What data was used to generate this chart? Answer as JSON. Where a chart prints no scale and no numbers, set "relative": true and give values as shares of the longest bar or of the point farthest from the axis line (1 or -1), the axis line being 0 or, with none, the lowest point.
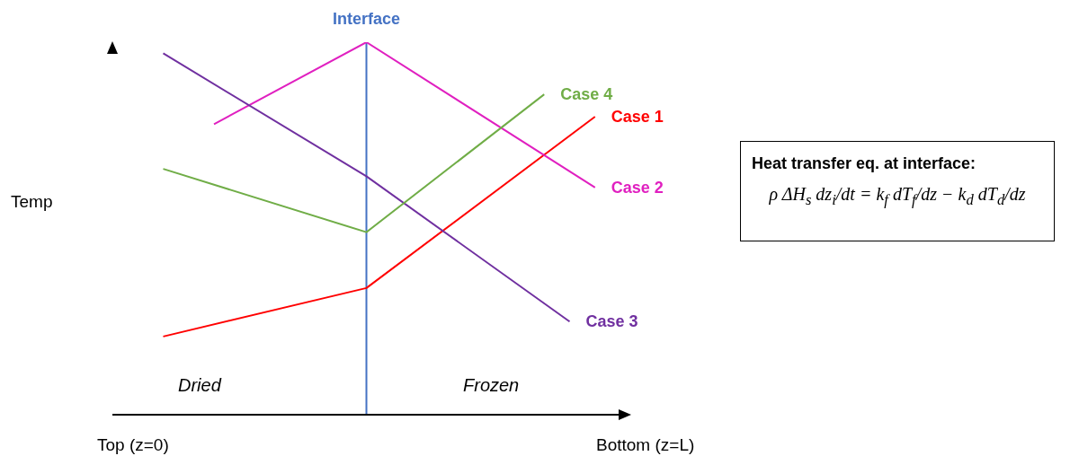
{
  "chart_data": {
    "type": "line",
    "relative": true,
    "ylabel": "Temp",
    "categories": [
      null,
      null,
      null,
      null,
      null,
      null,
      null,
      null,
      null,
      null,
      null,
      null,
      null,
      null,
      null,
      null,
      null,
      null,
      null
    ],
    "series": [
      {
        "name": "Case 1",
        "color": "#ff0000",
        "values": [
          null,
          0.21,
          null,
          null,
          null,
          null,
          null,
          null,
          null,
          0.34,
          null,
          null,
          null,
          null,
          null,
          null,
          null,
          null,
          0.8
        ]
      },
      {
        "name": "Case 2",
        "color": "#e020c0",
        "values": [
          null,
          null,
          null,
          0.78,
          null,
          null,
          null,
          null,
          null,
          1,
          null,
          null,
          null,
          null,
          null,
          null,
          null,
          null,
          0.61
        ]
      },
      {
        "name": "Case 3",
        "color": "#7030a0",
        "values": [
          null,
          0.97,
          null,
          null,
          null,
          null,
          null,
          null,
          null,
          0.64,
          null,
          null,
          null,
          null,
          null,
          null,
          null,
          0.25,
          null
        ]
      },
      {
        "name": "Case 4",
        "color": "#70ad47",
        "values": [
          null,
          0.66,
          null,
          null,
          null,
          null,
          null,
          null,
          null,
          0.49,
          null,
          null,
          null,
          null,
          null,
          null,
          0.86,
          null,
          null
        ]
      }
    ],
    "ref_lines": [
      {
        "axis": "x",
        "label": "Interface",
        "color": "#4472c4"
      }
    ],
    "annotations": [
      "Dried",
      "Frozen",
      "Top (z=0)",
      "Bottom (z=L)",
      "Heat transfer eq. at interface:",
      "ρ ΔH$_{s}$ dz$_{i}$/dt = k$_{f}$ dT$_{f}$/dz − k$_{d}$ dT$_{d}$/dz"
    ]
  }
}
